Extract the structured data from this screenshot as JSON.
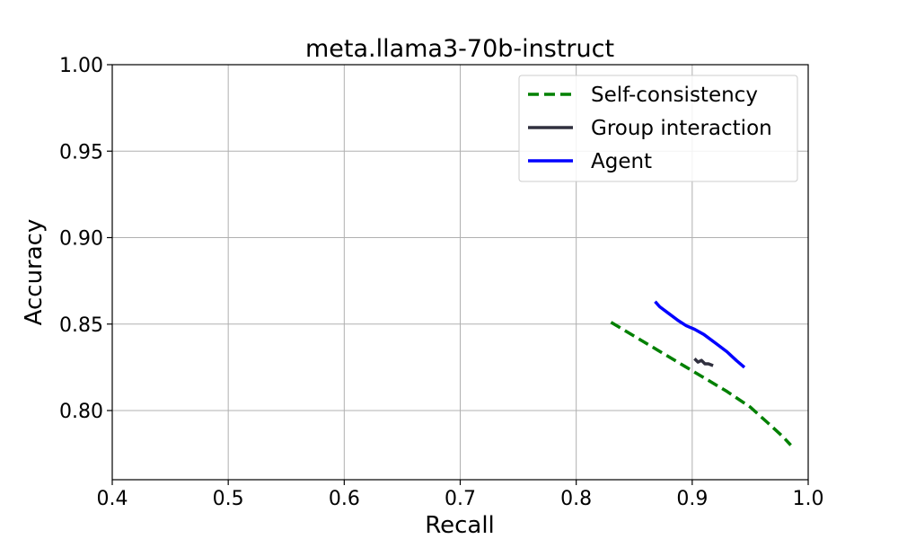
{
  "chart_data": {
    "type": "line",
    "title": "meta.llama3-70b-instruct",
    "xlabel": "Recall",
    "ylabel": "Accuracy",
    "xlim": [
      0.4,
      1.0
    ],
    "ylim": [
      0.76,
      1.0
    ],
    "xticks": [
      0.4,
      0.5,
      0.6,
      0.7,
      0.8,
      0.9,
      1.0
    ],
    "xtick_labels": [
      "0.4",
      "0.5",
      "0.6",
      "0.7",
      "0.8",
      "0.9",
      "1.0"
    ],
    "yticks": [
      0.8,
      0.85,
      0.9,
      0.95,
      1.0
    ],
    "ytick_labels": [
      "0.80",
      "0.85",
      "0.90",
      "0.95",
      "1.00"
    ],
    "grid": true,
    "legend_position": "upper-right",
    "series": [
      {
        "name": "Self-consistency",
        "color": "#008000",
        "style": "dashed",
        "x": [
          0.83,
          0.85,
          0.87,
          0.89,
          0.91,
          0.93,
          0.95,
          0.965,
          0.978,
          0.985
        ],
        "y": [
          0.851,
          0.843,
          0.835,
          0.827,
          0.819,
          0.811,
          0.802,
          0.793,
          0.785,
          0.78
        ]
      },
      {
        "name": "Group interaction",
        "color": "#30303f",
        "style": "solid",
        "x": [
          0.902,
          0.905,
          0.908,
          0.911,
          0.914,
          0.918
        ],
        "y": [
          0.83,
          0.828,
          0.829,
          0.827,
          0.827,
          0.826
        ]
      },
      {
        "name": "Agent",
        "color": "#0000ff",
        "style": "solid",
        "x": [
          0.868,
          0.872,
          0.88,
          0.888,
          0.895,
          0.902,
          0.91,
          0.92,
          0.93,
          0.938,
          0.945
        ],
        "y": [
          0.863,
          0.86,
          0.856,
          0.852,
          0.849,
          0.847,
          0.844,
          0.839,
          0.834,
          0.829,
          0.825
        ]
      }
    ]
  }
}
